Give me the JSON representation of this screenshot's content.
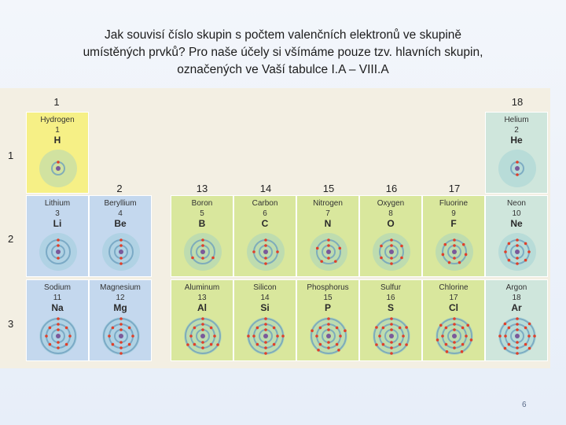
{
  "title": {
    "line1": "Jak souvisí číslo skupin s počtem valenčních elektronů ve skupině",
    "line2": "umístěných prvků? Pro naše účely si všímáme pouze tzv. hlavních skupin,",
    "line3": "označených ve Vaší tabulce I.A – VIII.A"
  },
  "group_labels": [
    "1",
    "2",
    "13",
    "14",
    "15",
    "16",
    "17",
    "18"
  ],
  "period_labels": [
    "1",
    "2",
    "3"
  ],
  "elements": [
    {
      "name": "Hydrogen",
      "number": "1",
      "symbol": "H"
    },
    {
      "name": "Helium",
      "number": "2",
      "symbol": "He"
    },
    {
      "name": "Lithium",
      "number": "3",
      "symbol": "Li"
    },
    {
      "name": "Beryllium",
      "number": "4",
      "symbol": "Be"
    },
    {
      "name": "Boron",
      "number": "5",
      "symbol": "B"
    },
    {
      "name": "Carbon",
      "number": "6",
      "symbol": "C"
    },
    {
      "name": "Nitrogen",
      "number": "7",
      "symbol": "N"
    },
    {
      "name": "Oxygen",
      "number": "8",
      "symbol": "O"
    },
    {
      "name": "Fluorine",
      "number": "9",
      "symbol": "F"
    },
    {
      "name": "Neon",
      "number": "10",
      "symbol": "Ne"
    },
    {
      "name": "Sodium",
      "number": "11",
      "symbol": "Na"
    },
    {
      "name": "Magnesium",
      "number": "12",
      "symbol": "Mg"
    },
    {
      "name": "Aluminum",
      "number": "13",
      "symbol": "Al"
    },
    {
      "name": "Silicon",
      "number": "14",
      "symbol": "Si"
    },
    {
      "name": "Phosphorus",
      "number": "15",
      "symbol": "P"
    },
    {
      "name": "Sulfur",
      "number": "16",
      "symbol": "S"
    },
    {
      "name": "Chlorine",
      "number": "17",
      "symbol": "Cl"
    },
    {
      "name": "Argon",
      "number": "18",
      "symbol": "Ar"
    }
  ],
  "colors": {
    "group1": "#f6f086",
    "group2_period": "#c4d8ee",
    "pblock": "#d9e79d",
    "noble": "#cfe6dc",
    "electron": "#e0402a",
    "nucleus": "#7a5a9a"
  },
  "page_number": "6"
}
